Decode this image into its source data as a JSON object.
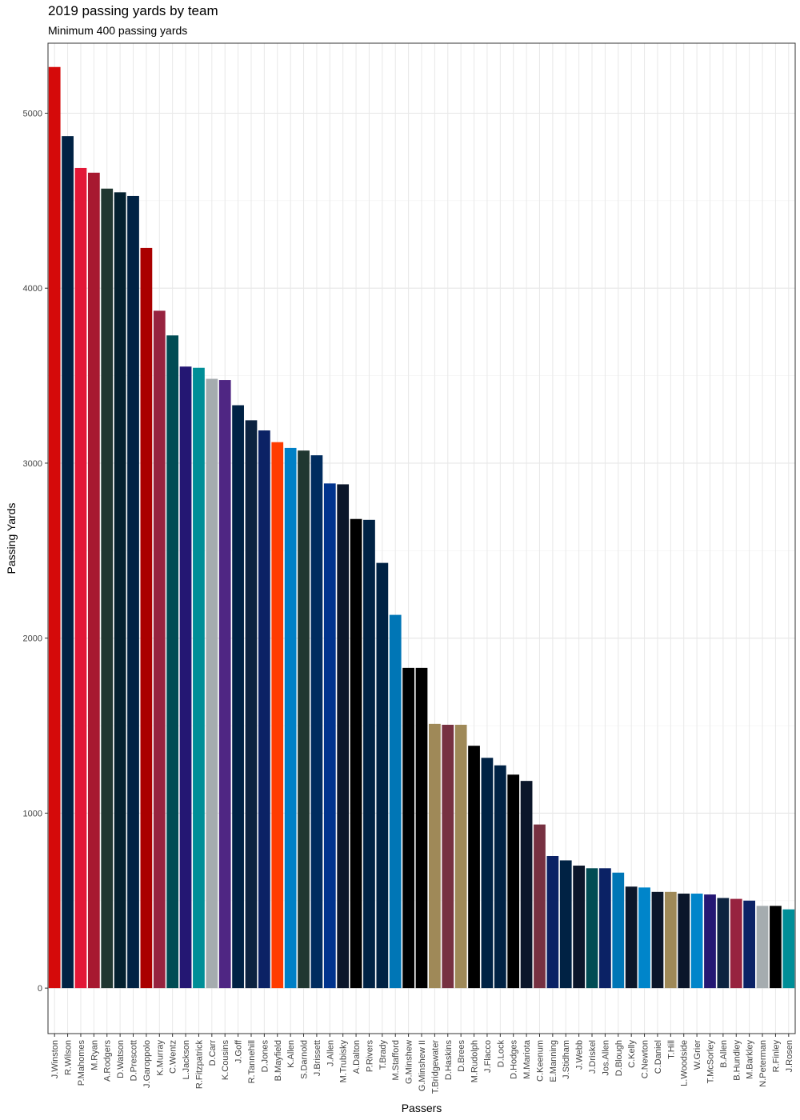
{
  "chart_data": {
    "type": "bar",
    "title": "2019 passing yards by team",
    "subtitle": "Minimum 400 passing yards",
    "xlabel": "Passers",
    "ylabel": "Passing Yards",
    "ylim": [
      -260,
      5400
    ],
    "yticks": [
      0,
      1000,
      2000,
      3000,
      4000,
      5000
    ],
    "grid": true,
    "legend": "none",
    "categories": [
      "J.Winston",
      "R.Wilson",
      "P.Mahomes",
      "M.Ryan",
      "A.Rodgers",
      "D.Watson",
      "D.Prescott",
      "J.Garoppolo",
      "K.Murray",
      "C.Wentz",
      "L.Jackson",
      "R.Fitzpatrick",
      "D.Carr",
      "K.Cousins",
      "J.Goff",
      "R.Tannehill",
      "D.Jones",
      "B.Mayfield",
      "K.Allen",
      "S.Darnold",
      "J.Brissett",
      "J.Allen",
      "M.Trubisky",
      "A.Dalton",
      "P.Rivers",
      "T.Brady",
      "M.Stafford",
      "G.Minshew",
      "G.Minshew II",
      "T.Bridgewater",
      "D.Haskins",
      "D.Brees",
      "M.Rudolph",
      "J.Flacco",
      "D.Lock",
      "D.Hodges",
      "M.Mariota",
      "C.Keenum",
      "E.Manning",
      "J.Stidham",
      "J.Webb",
      "J.Driskel",
      "Jos.Allen",
      "D.Blough",
      "C.Kelly",
      "C.Newton",
      "C.Daniel",
      "T.Hill",
      "L.Woodside",
      "W.Grier",
      "T.McSorley",
      "B.Allen",
      "B.Hundley",
      "M.Barkley",
      "N.Peterman",
      "R.Finley",
      "J.Rosen"
    ],
    "values": [
      5264,
      4869,
      4687,
      4660,
      4569,
      4548,
      4527,
      4230,
      3871,
      3730,
      3552,
      3545,
      3482,
      3475,
      3331,
      3245,
      3187,
      3120,
      3087,
      3072,
      3045,
      2884,
      2879,
      2681,
      2676,
      2430,
      2133,
      1830,
      1830,
      1510,
      1505,
      1505,
      1385,
      1316,
      1273,
      1220,
      1184,
      935,
      755,
      730,
      700,
      685,
      685,
      660,
      580,
      575,
      550,
      550,
      540,
      540,
      535,
      515,
      510,
      500,
      470,
      470,
      450
    ],
    "colors": [
      "#D50A0A",
      "#002244",
      "#E31837",
      "#A71930",
      "#203731",
      "#03202F",
      "#002244",
      "#AA0000",
      "#97233F",
      "#004C54",
      "#241773",
      "#008E97",
      "#A5ACAF",
      "#4F2683",
      "#002244",
      "#0C2340",
      "#0B2265",
      "#FF3C00",
      "#0080C6",
      "#203731",
      "#002C5F",
      "#00338D",
      "#0B162A",
      "#000000",
      "#002244",
      "#002244",
      "#0076B6",
      "#000000",
      "#000000",
      "#9F8958",
      "#773141",
      "#9F8958",
      "#000000",
      "#002244",
      "#002244",
      "#000000",
      "#0B162A",
      "#773141",
      "#0B2265",
      "#002244",
      "#0B162A",
      "#004C54",
      "#0B2265",
      "#0076B6",
      "#0B162A",
      "#0085CA",
      "#0B162A",
      "#9F8958",
      "#0B162A",
      "#0085CA",
      "#241773",
      "#0C2340",
      "#97233F",
      "#0B2265",
      "#A5ACAF",
      "#000000",
      "#008E97"
    ]
  }
}
